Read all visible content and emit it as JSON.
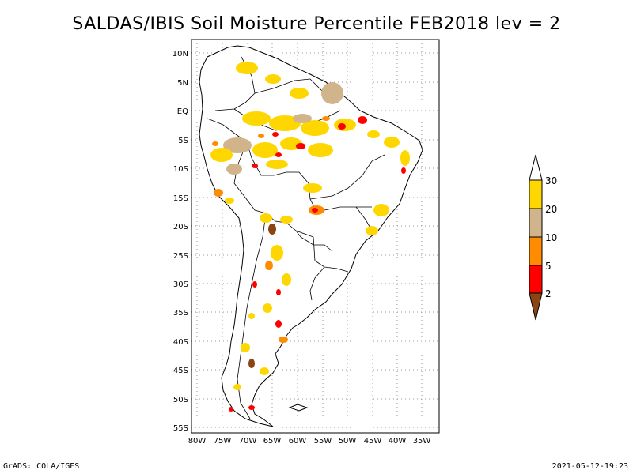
{
  "title": "SALDAS/IBIS Soil Moisture Percentile FEB2018 lev = 2",
  "footer": {
    "left": "GrADS: COLA/IGES",
    "right": "2021-05-12-19:23"
  },
  "map": {
    "lon_range": [
      -81,
      -30
    ],
    "lat_range": [
      -56,
      12
    ],
    "x_ticks": [
      "80W",
      "75W",
      "70W",
      "65W",
      "60W",
      "55W",
      "50W",
      "45W",
      "40W",
      "35W"
    ],
    "y_ticks": [
      "10N",
      "5N",
      "EQ",
      "5S",
      "10S",
      "15S",
      "20S",
      "25S",
      "30S",
      "35S",
      "40S",
      "45S",
      "50S",
      "55S"
    ],
    "grid": "dotted"
  },
  "colorbar": {
    "labels": [
      "30",
      "20",
      "10",
      "5",
      "2"
    ],
    "colors": [
      "#ffd700",
      "#d2b48c",
      "#ff8c00",
      "#ff0000",
      "#8b4513"
    ],
    "open_top_color": "#ffffff"
  }
}
